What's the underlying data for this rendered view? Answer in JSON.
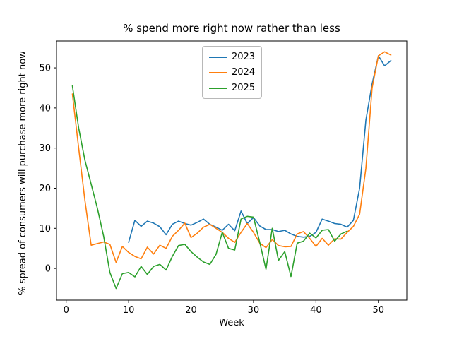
{
  "chart_data": {
    "type": "line",
    "title": "% spend more right now rather than less",
    "xlabel": "Week",
    "ylabel": "% spread of consumers will purchase more right now",
    "xlim": [
      -1.55,
      54.55
    ],
    "ylim": [
      -7.9,
      56.7
    ],
    "xticks": [
      0,
      10,
      20,
      30,
      40,
      50
    ],
    "yticks": [
      0,
      10,
      20,
      30,
      40,
      50
    ],
    "grid": false,
    "legend_position": "upper center-left inside plot",
    "series": [
      {
        "name": "2023",
        "color": "#1f77b4",
        "x": [
          10,
          11,
          12,
          13,
          14,
          15,
          16,
          17,
          18,
          19,
          20,
          21,
          22,
          23,
          24,
          25,
          26,
          27,
          28,
          29,
          30,
          31,
          32,
          33,
          34,
          35,
          36,
          37,
          38,
          39,
          40,
          41,
          42,
          43,
          44,
          45,
          46,
          47,
          48,
          49,
          50,
          51,
          52
        ],
        "y": [
          6.5,
          12,
          10.5,
          11.8,
          11.3,
          10.4,
          8.4,
          11,
          11.8,
          11.2,
          10.8,
          11.5,
          12.3,
          11,
          10.3,
          9.5,
          11,
          9.4,
          14.3,
          11.2,
          12.7,
          10.6,
          9.7,
          9.7,
          9.2,
          9.5,
          8.6,
          8,
          7.8,
          8,
          9,
          12.3,
          11.8,
          11.2,
          11,
          10.3,
          12,
          20,
          37,
          46,
          53,
          50.5,
          51.8
        ]
      },
      {
        "name": "2024",
        "color": "#ff7f0e",
        "x": [
          1,
          2,
          3,
          4,
          5,
          6,
          7,
          8,
          9,
          10,
          11,
          12,
          13,
          14,
          15,
          16,
          17,
          18,
          19,
          20,
          21,
          22,
          23,
          24,
          25,
          26,
          27,
          28,
          29,
          30,
          31,
          32,
          33,
          34,
          35,
          36,
          37,
          38,
          39,
          40,
          41,
          42,
          43,
          44,
          45,
          46,
          47,
          48,
          49,
          50,
          51,
          52
        ],
        "y": [
          43.5,
          30,
          17,
          5.8,
          6.2,
          6.6,
          6,
          1.5,
          5.5,
          4,
          3,
          2.4,
          5.3,
          3.6,
          5.8,
          5,
          8,
          9.5,
          11.3,
          7.7,
          8.8,
          10.3,
          11,
          10,
          9,
          7.5,
          6.5,
          9,
          11.2,
          9,
          6.3,
          5.2,
          7.2,
          5.7,
          5.4,
          5.5,
          8.6,
          9.2,
          7.5,
          5.5,
          7.5,
          5.8,
          7.4,
          7.3,
          9,
          10.5,
          13.5,
          25,
          45,
          53,
          54,
          53.2
        ]
      },
      {
        "name": "2025",
        "color": "#2ca02c",
        "x": [
          1,
          2,
          3,
          4,
          5,
          6,
          7,
          8,
          9,
          10,
          11,
          12,
          13,
          14,
          15,
          16,
          17,
          18,
          19,
          20,
          21,
          22,
          23,
          24,
          25,
          26,
          27,
          28,
          29,
          30,
          31,
          32,
          33,
          34,
          35,
          36,
          37,
          38,
          39,
          40,
          41,
          42,
          43,
          44,
          45
        ],
        "y": [
          45.5,
          35,
          27,
          21,
          15,
          8,
          -1,
          -5,
          -1.3,
          -1,
          -2.1,
          0.5,
          -1.5,
          0.5,
          1,
          -0.4,
          3,
          5.7,
          6,
          4.2,
          2.8,
          1.6,
          1,
          3.5,
          9,
          5,
          4.6,
          12.3,
          13,
          12.8,
          6.5,
          -0.2,
          10,
          2,
          4.2,
          -2,
          6.3,
          6.8,
          8.8,
          7.6,
          9.5,
          9.7,
          6.8,
          8.6,
          9.3
        ]
      }
    ]
  }
}
